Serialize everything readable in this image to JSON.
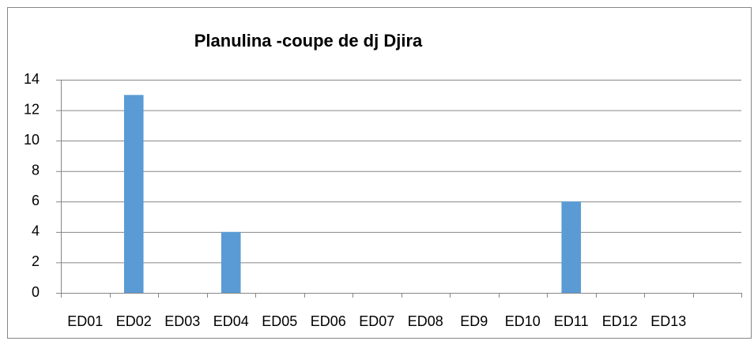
{
  "chart_data": {
    "type": "bar",
    "title": "Planulina -coupe de dj Djira",
    "categories": [
      "ED01",
      "ED02",
      "ED03",
      "ED04",
      "ED05",
      "ED06",
      "ED07",
      "ED08",
      "ED9",
      "ED10",
      "ED11",
      "ED12",
      "ED13",
      null
    ],
    "values": [
      0,
      13,
      0,
      4,
      0,
      0,
      0,
      0,
      0,
      0,
      6,
      0,
      0,
      0
    ],
    "color": "#5b9bd5",
    "ylim": [
      0,
      14
    ],
    "yticks": [
      0,
      2,
      4,
      6,
      8,
      10,
      12,
      14
    ],
    "grid": true
  }
}
